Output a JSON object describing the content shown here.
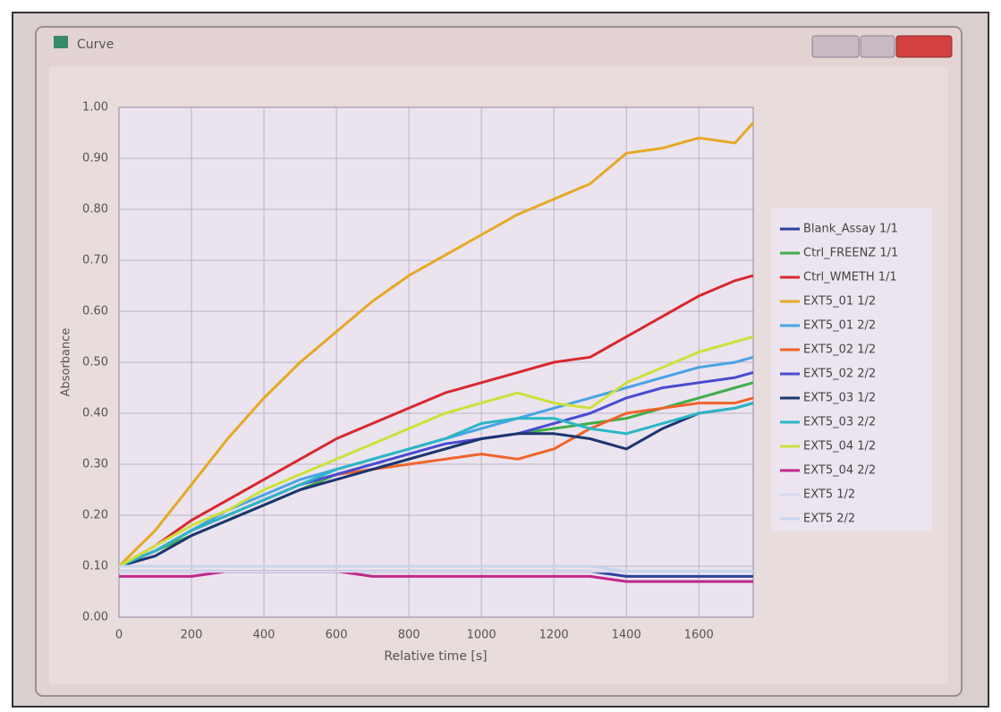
{
  "window": {
    "title": "Curve"
  },
  "chart_data": {
    "type": "line",
    "x_label": "Relative time [s]",
    "y_label": "Absorbance",
    "x": [
      0,
      100,
      200,
      300,
      400,
      500,
      600,
      700,
      800,
      900,
      1000,
      1100,
      1200,
      1300,
      1400,
      1500,
      1600,
      1700,
      1750
    ],
    "xlim": [
      0,
      1750
    ],
    "ylim": [
      0,
      1
    ],
    "xticks": [
      0,
      200,
      400,
      600,
      800,
      1000,
      1200,
      1400,
      1600
    ],
    "yticks": [
      {
        "value": 0,
        "label": "0.00"
      },
      {
        "value": 0.1,
        "label": "0.10"
      },
      {
        "value": 0.2,
        "label": "0.20"
      },
      {
        "value": 0.3,
        "label": "0.30"
      },
      {
        "value": 0.4,
        "label": "0.40"
      },
      {
        "value": 0.5,
        "label": "0.50"
      },
      {
        "value": 0.6,
        "label": "0.60"
      },
      {
        "value": 0.7,
        "label": "0.70"
      },
      {
        "value": 0.8,
        "label": "0.80"
      },
      {
        "value": 0.9,
        "label": "0.90"
      },
      {
        "value": 1,
        "label": "1.00"
      }
    ],
    "grid": true,
    "series": [
      {
        "name": "Blank_Assay 1/1",
        "color": "#2a3f9e",
        "values": [
          0.09,
          0.09,
          0.09,
          0.09,
          0.09,
          0.09,
          0.09,
          0.09,
          0.09,
          0.09,
          0.09,
          0.09,
          0.09,
          0.09,
          0.08,
          0.08,
          0.08,
          0.08,
          0.08
        ]
      },
      {
        "name": "Ctrl_FREENZ 1/1",
        "color": "#3fae4a",
        "values": [
          0.1,
          0.13,
          0.16,
          0.19,
          0.22,
          0.25,
          0.28,
          0.29,
          0.31,
          0.33,
          0.35,
          0.36,
          0.37,
          0.38,
          0.39,
          0.41,
          0.43,
          0.45,
          0.46
        ]
      },
      {
        "name": "Ctrl_WMETH 1/1",
        "color": "#d8282e",
        "values": [
          0.1,
          0.14,
          0.19,
          0.23,
          0.27,
          0.31,
          0.35,
          0.38,
          0.41,
          0.44,
          0.46,
          0.48,
          0.5,
          0.51,
          0.55,
          0.59,
          0.63,
          0.66,
          0.67
        ]
      },
      {
        "name": "EXT5_01 1/2",
        "color": "#e6a825",
        "values": [
          0.1,
          0.17,
          0.26,
          0.35,
          0.43,
          0.5,
          0.56,
          0.62,
          0.67,
          0.71,
          0.75,
          0.79,
          0.82,
          0.85,
          0.91,
          0.92,
          0.94,
          0.93,
          0.97
        ]
      },
      {
        "name": "EXT5_01 2/2",
        "color": "#4aa3e6",
        "values": [
          0.1,
          0.13,
          0.17,
          0.21,
          0.24,
          0.27,
          0.29,
          0.31,
          0.33,
          0.35,
          0.37,
          0.39,
          0.41,
          0.43,
          0.45,
          0.47,
          0.49,
          0.5,
          0.51
        ]
      },
      {
        "name": "EXT5_02 1/2",
        "color": "#f0642a",
        "values": [
          0.1,
          0.13,
          0.17,
          0.2,
          0.23,
          0.26,
          0.28,
          0.29,
          0.3,
          0.31,
          0.32,
          0.31,
          0.33,
          0.37,
          0.4,
          0.41,
          0.42,
          0.42,
          0.43
        ]
      },
      {
        "name": "EXT5_02 2/2",
        "color": "#4a4ad0",
        "values": [
          0.1,
          0.13,
          0.17,
          0.2,
          0.23,
          0.26,
          0.28,
          0.3,
          0.32,
          0.34,
          0.35,
          0.36,
          0.38,
          0.4,
          0.43,
          0.45,
          0.46,
          0.47,
          0.48
        ]
      },
      {
        "name": "EXT5_03 1/2",
        "color": "#1c3470",
        "values": [
          0.1,
          0.12,
          0.16,
          0.19,
          0.22,
          0.25,
          0.27,
          0.29,
          0.31,
          0.33,
          0.35,
          0.36,
          0.36,
          0.35,
          0.33,
          0.37,
          0.4,
          0.41,
          0.42
        ]
      },
      {
        "name": "EXT5_03 2/2",
        "color": "#2bb6c6",
        "values": [
          0.1,
          0.13,
          0.17,
          0.2,
          0.23,
          0.26,
          0.29,
          0.31,
          0.33,
          0.35,
          0.38,
          0.39,
          0.39,
          0.37,
          0.36,
          0.38,
          0.4,
          0.41,
          0.42
        ]
      },
      {
        "name": "EXT5_04 1/2",
        "color": "#cde03a",
        "values": [
          0.1,
          0.14,
          0.18,
          0.21,
          0.25,
          0.28,
          0.31,
          0.34,
          0.37,
          0.4,
          0.42,
          0.44,
          0.42,
          0.41,
          0.46,
          0.49,
          0.52,
          0.54,
          0.55
        ]
      },
      {
        "name": "EXT5_04 2/2",
        "color": "#c0288a",
        "values": [
          0.08,
          0.08,
          0.08,
          0.09,
          0.09,
          0.09,
          0.09,
          0.08,
          0.08,
          0.08,
          0.08,
          0.08,
          0.08,
          0.08,
          0.07,
          0.07,
          0.07,
          0.07,
          0.07
        ]
      },
      {
        "name": "EXT5 1/2",
        "color": "#d6d8ec",
        "values": [
          0.09,
          0.09,
          0.09,
          0.09,
          0.09,
          0.09,
          0.09,
          0.09,
          0.09,
          0.09,
          0.09,
          0.09,
          0.09,
          0.09,
          0.09,
          0.09,
          0.09,
          0.09,
          0.09
        ]
      },
      {
        "name": "EXT5 2/2",
        "color": "#c8d4ec",
        "values": [
          0.1,
          0.1,
          0.1,
          0.1,
          0.1,
          0.1,
          0.1,
          0.1,
          0.1,
          0.1,
          0.1,
          0.1,
          0.1,
          0.1,
          0.09,
          0.09,
          0.09,
          0.09,
          0.09
        ]
      }
    ]
  }
}
